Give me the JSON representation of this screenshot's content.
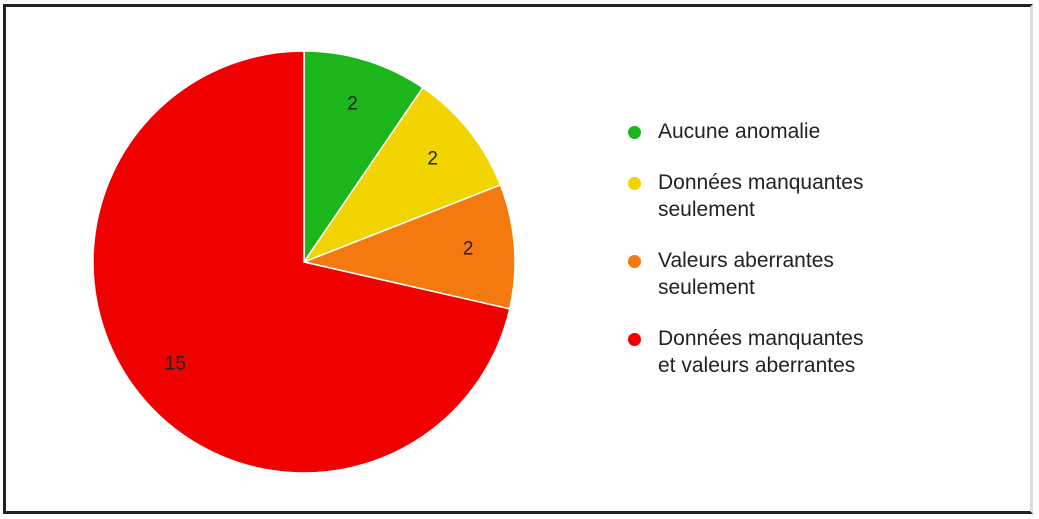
{
  "chart_data": {
    "type": "pie",
    "categories": [
      "Aucune anomalie",
      "Données manquantes seulement",
      "Valeurs aberrantes seulement",
      "Données manquantes et valeurs aberrantes"
    ],
    "values": [
      2,
      2,
      2,
      15
    ],
    "colors": [
      "#1cb51c",
      "#f2d400",
      "#f47a10",
      "#f00000"
    ],
    "legend": "right"
  }
}
